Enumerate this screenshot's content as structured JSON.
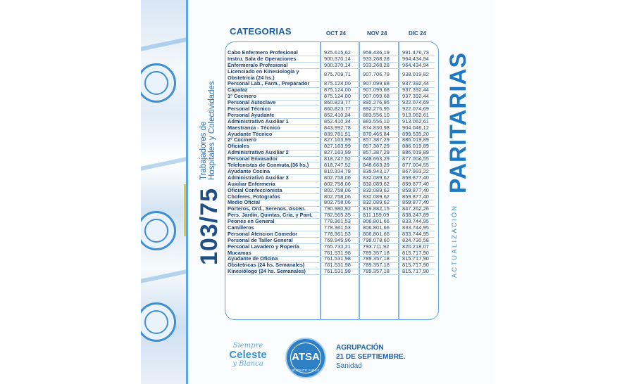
{
  "vertical": {
    "code": "103/75",
    "subtitle_line1": "Trabajadores de",
    "subtitle_line2": "Hospitales y Colectividades",
    "paritarias": "PARITARIAS",
    "actualizacion": "Actualización"
  },
  "header": {
    "title": "CATEGORIAS",
    "columns": [
      "OCT 24",
      "NOV 24",
      "DIC 24"
    ]
  },
  "rows": [
    {
      "category": "Cabo Enfermero Profesional",
      "oct": "925.615,62",
      "nov": "959.436,19",
      "dic": "991.476,73"
    },
    {
      "category": "Instru. Sala de Operaciones",
      "oct": "900.370,14",
      "nov": "933.268,28",
      "dic": "964.434,94"
    },
    {
      "category": "Enfermera/o Profesional",
      "oct": "900.370,14",
      "nov": "933.268,28",
      "dic": "964.434,94"
    },
    {
      "category": "Licenciado en Kinesiología y Obstetricia (24 hs.)",
      "oct": "875.709,71",
      "nov": "907.706,79",
      "dic": "938.019,82"
    },
    {
      "category": "Personal Lab., Farm., Preparador",
      "oct": "875.124,00",
      "nov": "907.099,68",
      "dic": "937.392,44"
    },
    {
      "category": "Capataz",
      "oct": "875.124,00",
      "nov": "907.099,68",
      "dic": "937.392,44"
    },
    {
      "category": "1º Cocinero",
      "oct": "875.124,00",
      "nov": "907.099,68",
      "dic": "937.392,44"
    },
    {
      "category": "Personal Autoclave",
      "oct": "860.823,77",
      "nov": "892.276,95",
      "dic": "922.074,69"
    },
    {
      "category": "Personal Técnico",
      "oct": "860.823,77",
      "nov": "892.276,95",
      "dic": "922.074,69"
    },
    {
      "category": "Personal Ayudante",
      "oct": "852.410,34",
      "nov": "883.556,10",
      "dic": "913.062,61"
    },
    {
      "category": "Administrativo Auxiliar 1",
      "oct": "852.410,34",
      "nov": "883.556,10",
      "dic": "913.062,61"
    },
    {
      "category": "Maestranza - Técnico",
      "oct": "843.992,78",
      "nov": "874.830,98",
      "dic": "904.046,12"
    },
    {
      "category": "Ayudante Técnico",
      "oct": "839.781,51",
      "nov": "870.465,84",
      "dic": "899.535,20"
    },
    {
      "category": "2º Cocinero",
      "oct": "827.163,99",
      "nov": "857.387,29",
      "dic": "886.019,89"
    },
    {
      "category": "Oficiales",
      "oct": "827.163,99",
      "nov": "857.387,29",
      "dic": "886.019,89"
    },
    {
      "category": "Administrativo Auxiliar 2",
      "oct": "827.163,99",
      "nov": "857.387,29",
      "dic": "886.019,89"
    },
    {
      "category": "Personal Envasador",
      "oct": "818.747,52",
      "nov": "848.663,29",
      "dic": "877.004,55"
    },
    {
      "category": "Telefonistas de Conmuta.(36 hs.)",
      "oct": "818.747,52",
      "nov": "848.663,29",
      "dic": "877.004,55"
    },
    {
      "category": "Ayudante Cocina",
      "oct": "810.334,78",
      "nov": "839.943,17",
      "dic": "867.993,22"
    },
    {
      "category": "Administrativo Auxiliar 3",
      "oct": "802.758,06",
      "nov": "832.089,62",
      "dic": "859.877,40"
    },
    {
      "category": "Auxiliar Enfermería",
      "oct": "802.758,06",
      "nov": "832.089,62",
      "dic": "859.877,40"
    },
    {
      "category": "Oficial Confeccionista",
      "oct": "802.758,06",
      "nov": "832.089,62",
      "dic": "859.877,40"
    },
    {
      "category": "Choferes, Fotografos",
      "oct": "802.758,06",
      "nov": "832.089,62",
      "dic": "859.877,40"
    },
    {
      "category": "Medio Oficial",
      "oct": "802.758,06",
      "nov": "832.089,62",
      "dic": "859.877,40"
    },
    {
      "category": "Porteros, Ord., Serenos, Ascen.",
      "oct": "790.980,92",
      "nov": "819.882,15",
      "dic": "847.262,26"
    },
    {
      "category": "Pers. Jardín, Quintas, Cría. y Pant.",
      "oct": "782.565,35",
      "nov": "811.159,09",
      "dic": "838.247,89"
    },
    {
      "category": "Peones en General",
      "oct": "778.361,53",
      "nov": "806.801,66",
      "dic": "833.744,95"
    },
    {
      "category": "Camilleros",
      "oct": "778.361,53",
      "nov": "806.801,66",
      "dic": "833.744,95"
    },
    {
      "category": "Personal Atencion Comedor",
      "oct": "778.361,53",
      "nov": "806.801,66",
      "dic": "833.744,95"
    },
    {
      "category": "Personal de Taller General",
      "oct": "769.945,96",
      "nov": "798.078,60",
      "dic": "824.730,58"
    },
    {
      "category": "Personal Lavadero y Ropería",
      "oct": "765.733,21",
      "nov": "793.711,92",
      "dic": "820.218,07"
    },
    {
      "category": "Mucamas",
      "oct": "761.531,98",
      "nov": "789.357,18",
      "dic": "815.717,90"
    },
    {
      "category": "Ayudante de Oficina",
      "oct": "761.531,98",
      "nov": "789.357,18",
      "dic": "815.717,90"
    },
    {
      "category": "Obstetricas (24 hs. Semanales)",
      "oct": "761.531,98",
      "nov": "789.357,18",
      "dic": "815.717,90"
    },
    {
      "category": "Kinesiólogo (24 hs. Semanales)",
      "oct": "761.531,98",
      "nov": "789.357,18",
      "dic": "815.717,90"
    }
  ],
  "footer": {
    "script_line1": "Siempre",
    "script_line2": "Celeste",
    "script_line3": "y Blanca",
    "seal_text": "ATSA",
    "seal_sub": "BUENOS AIRES",
    "agrupacion_line1": "AGRUPACIÓN",
    "agrupacion_line2": "21 DE SEPTIEMBRE.",
    "agrupacion_line3": "Sanidad"
  },
  "colors": {
    "primary_blue": "#1e5fa3",
    "light_blue": "#5aa6dc",
    "accent_yellow": "#f4c51f"
  }
}
